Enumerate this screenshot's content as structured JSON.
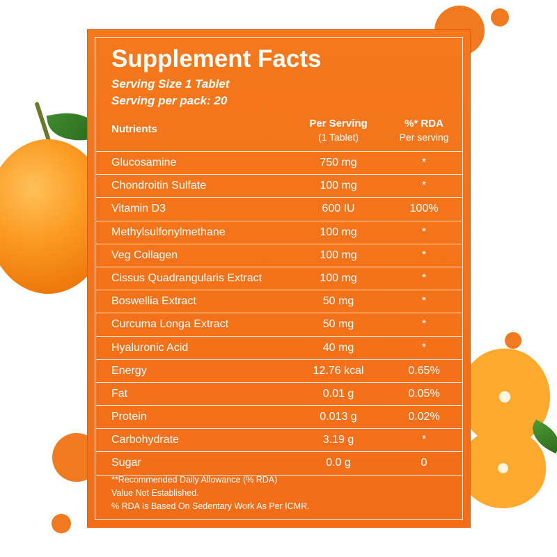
{
  "label": {
    "title": "Supplement Facts",
    "serving_size": "Serving Size 1 Tablet",
    "serving_per_pack": "Serving per pack: 20",
    "headers": {
      "nutrients": "Nutrients",
      "per_serving": "Per Serving",
      "per_serving_sub": "(1 Tablet)",
      "rda": "%* RDA",
      "rda_sub": "Per serving"
    },
    "rows": [
      {
        "name": "Glucosamine",
        "value": "750 mg",
        "rda": "*"
      },
      {
        "name": "Chondroitin Sulfate",
        "value": "100 mg",
        "rda": "*"
      },
      {
        "name": "Vitamin D3",
        "value": "600 IU",
        "rda": "100%"
      },
      {
        "name": "Methylsulfonylmethane",
        "value": "100 mg",
        "rda": "*"
      },
      {
        "name": "Veg Collagen",
        "value": "100 mg",
        "rda": "*"
      },
      {
        "name": "Cissus Quadrangularis Extract",
        "value": "100 mg",
        "rda": "*"
      },
      {
        "name": "Boswellia Extract",
        "value": "50 mg",
        "rda": "*"
      },
      {
        "name": "Curcuma Longa Extract",
        "value": "50 mg",
        "rda": "*"
      },
      {
        "name": "Hyaluronic Acid",
        "value": "40 mg",
        "rda": "*"
      },
      {
        "name": "Energy",
        "value": "12.76 kcal",
        "rda": "0.65%"
      },
      {
        "name": "Fat",
        "value": "0.01 g",
        "rda": "0.05%"
      },
      {
        "name": "Protein",
        "value": "0.013 g",
        "rda": "0.02%"
      },
      {
        "name": "Carbohydrate",
        "value": "3.19 g",
        "rda": "*"
      },
      {
        "name": "Sugar",
        "value": "0.0 g",
        "rda": "0"
      }
    ],
    "footnotes": [
      "**Recommended Daily Allowance (% RDA)",
      "Value Not Established.",
      "% RDA Is Based On Sedentary Work As Per ICMR."
    ]
  },
  "colors": {
    "panel": "#f5781d",
    "accent_dots": "#f07a1f",
    "text": "#ffffff"
  }
}
